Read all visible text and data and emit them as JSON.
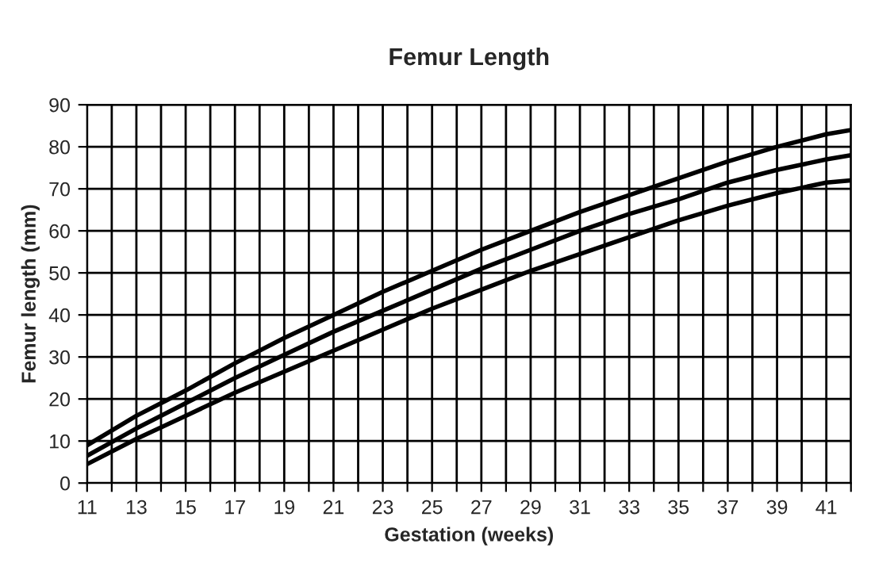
{
  "chart_data": {
    "type": "line",
    "title": "Femur Length",
    "xlabel": "Gestation (weeks)",
    "ylabel": "Femur length (mm)",
    "x": [
      11,
      13,
      15,
      17,
      19,
      21,
      23,
      25,
      27,
      29,
      31,
      33,
      35,
      37,
      39,
      41,
      42
    ],
    "series": [
      {
        "color": "#000000",
        "values": [
          9,
          16,
          22,
          28.5,
          34.5,
          40,
          45.5,
          50.5,
          55.5,
          60,
          64.5,
          68.5,
          72.5,
          76.5,
          80,
          83,
          84
        ]
      },
      {
        "color": "#000000",
        "values": [
          6.5,
          13,
          19,
          25,
          30.5,
          36,
          41,
          46,
          51,
          55.5,
          60,
          64,
          67.5,
          71.5,
          74.5,
          77,
          78
        ]
      },
      {
        "color": "#000000",
        "values": [
          4.5,
          10.5,
          16,
          21.5,
          26.5,
          31.5,
          36.5,
          41.5,
          46,
          50.5,
          54.5,
          58.5,
          62.5,
          66,
          69,
          71.5,
          72
        ]
      }
    ],
    "xlim": [
      11,
      42
    ],
    "ylim": [
      0,
      90
    ],
    "xticks": [
      11,
      {
        "value": 12,
        "label": null
      },
      13,
      {
        "value": 14,
        "label": null
      },
      15,
      {
        "value": 16,
        "label": null
      },
      17,
      {
        "value": 18,
        "label": null
      },
      19,
      {
        "value": 20,
        "label": null
      },
      21,
      {
        "value": 22,
        "label": null
      },
      23,
      {
        "value": 24,
        "label": null
      },
      25,
      {
        "value": 26,
        "label": null
      },
      27,
      {
        "value": 28,
        "label": null
      },
      29,
      {
        "value": 30,
        "label": null
      },
      31,
      {
        "value": 32,
        "label": null
      },
      33,
      {
        "value": 34,
        "label": null
      },
      35,
      {
        "value": 36,
        "label": null
      },
      37,
      {
        "value": 38,
        "label": null
      },
      39,
      {
        "value": 40,
        "label": null
      },
      41,
      {
        "value": 42,
        "label": null
      }
    ],
    "yticks": [
      0,
      10,
      20,
      30,
      40,
      50,
      60,
      70,
      80,
      90
    ],
    "grid": true,
    "line_style": "solid",
    "marker": "none"
  }
}
